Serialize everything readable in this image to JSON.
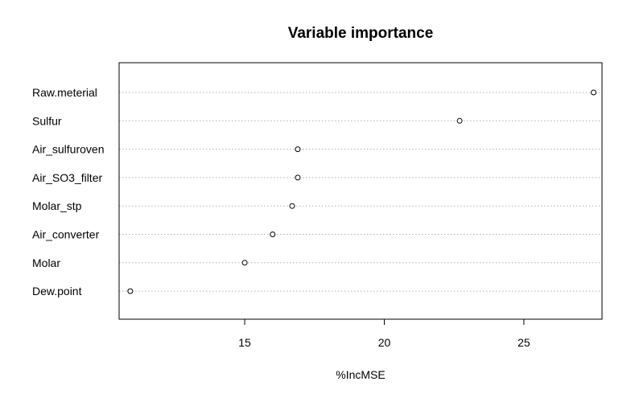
{
  "chart_data": {
    "type": "scatter",
    "subtype": "dotchart",
    "title": "Variable importance",
    "xlabel": "%IncMSE",
    "ylabel": "",
    "xlim": [
      10.5,
      27.8
    ],
    "xticks": [
      15,
      20,
      25
    ],
    "grid": "horizontal dotted",
    "categories": [
      "Raw.meterial",
      "Sulfur",
      "Air_sulfuroven",
      "Air_SO3_filter",
      "Molar_stp",
      "Air_converter",
      "Molar",
      "Dew.point"
    ],
    "values": [
      27.5,
      22.7,
      16.9,
      16.9,
      16.7,
      16.0,
      15.0,
      10.9
    ]
  }
}
